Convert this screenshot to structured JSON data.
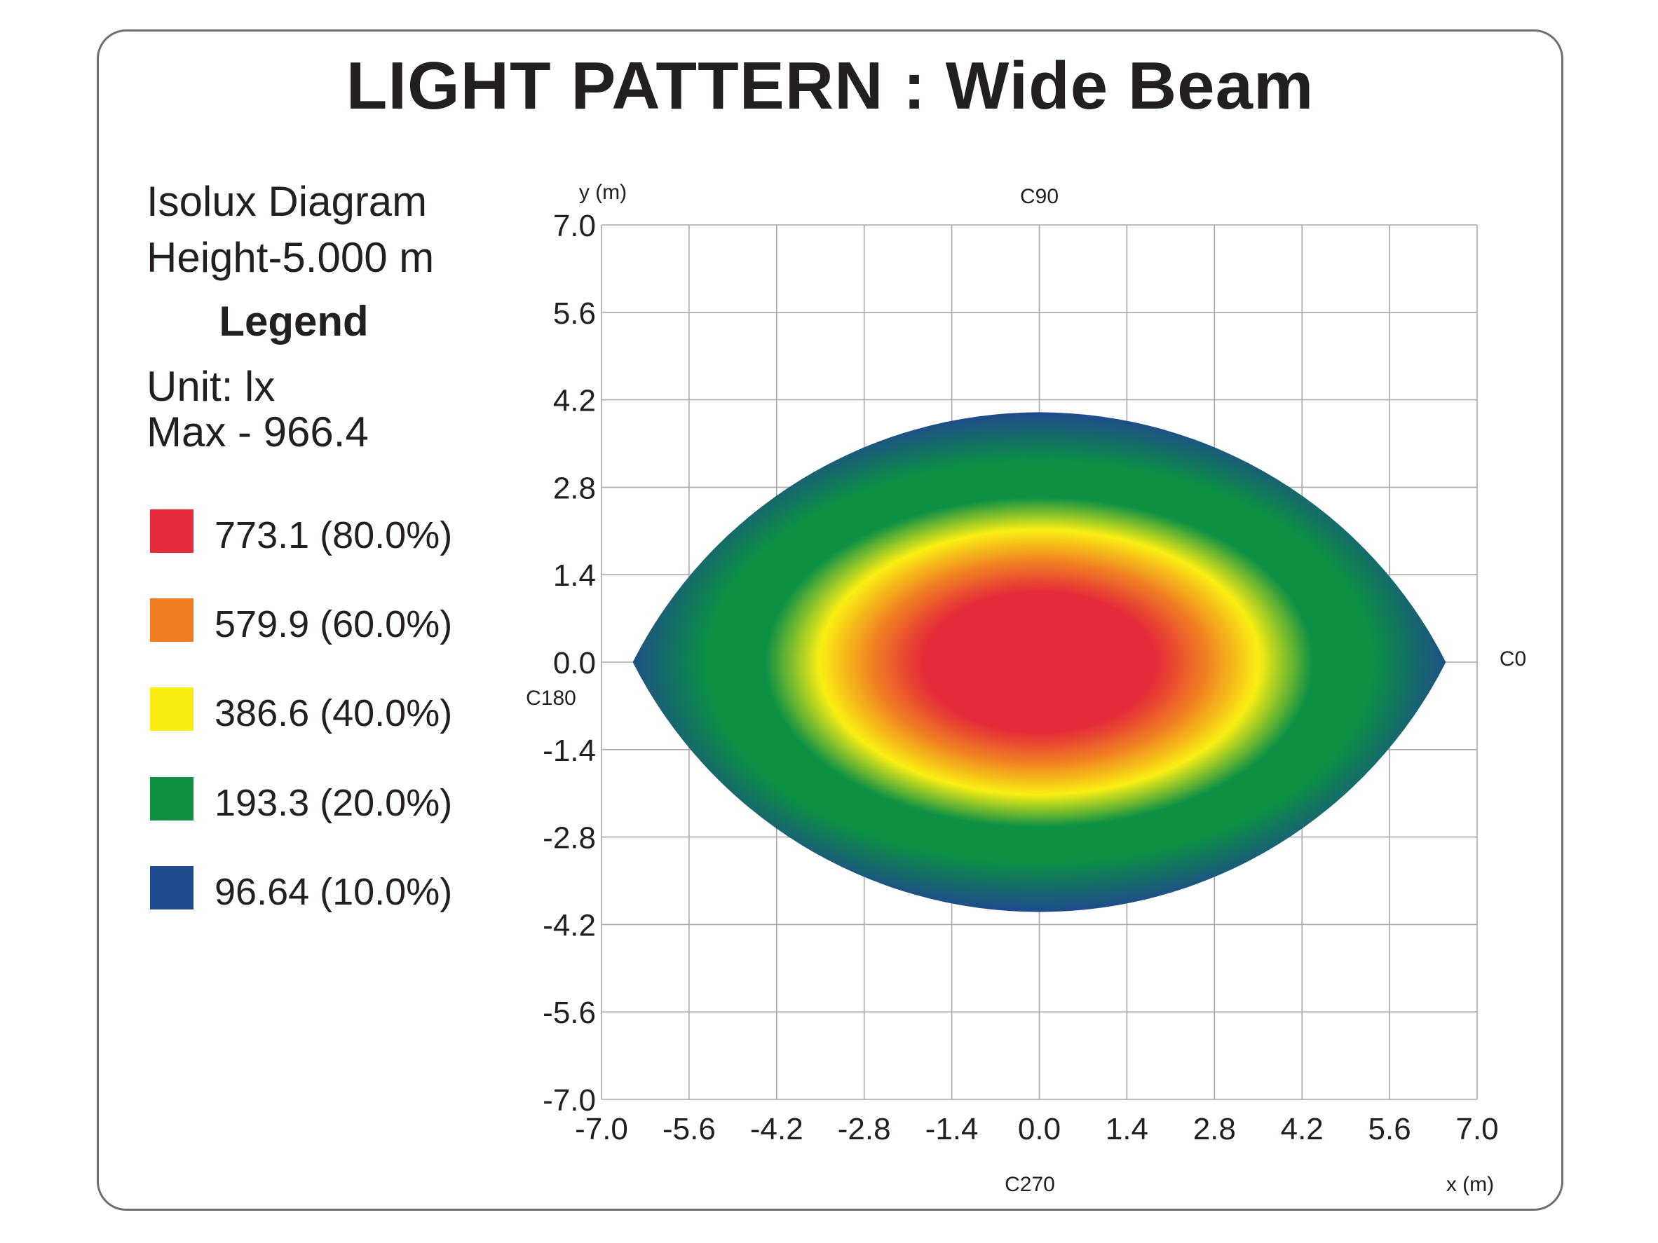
{
  "title": "LIGHT PATTERN : Wide Beam",
  "info": {
    "diagram": "Isolux Diagram",
    "height": "Height-5.000 m",
    "unit": "Unit: lx",
    "max": "Max - 966.4"
  },
  "legend": {
    "heading": "Legend",
    "items": [
      {
        "label": "773.1 (80.0%)",
        "color": "#e52a3a"
      },
      {
        "label": "579.9 (60.0%)",
        "color": "#f07d22"
      },
      {
        "label": "386.6 (40.0%)",
        "color": "#f9ee12"
      },
      {
        "label": "193.3 (20.0%)",
        "color": "#0c9144"
      },
      {
        "label": "96.64 (10.0%)",
        "color": "#1f4a8c"
      }
    ]
  },
  "chart_data": {
    "type": "heatmap",
    "xlabel": "x (m)",
    "ylabel": "y (m)",
    "xlim": [
      -7.0,
      7.0
    ],
    "ylim": [
      -7.0,
      7.0
    ],
    "x_ticks": [
      "-7.0",
      "-5.6",
      "-4.2",
      "-2.8",
      "-1.4",
      "0.0",
      "1.4",
      "2.8",
      "4.2",
      "5.6",
      "7.0"
    ],
    "y_ticks": [
      "7.0",
      "5.6",
      "4.2",
      "2.8",
      "1.4",
      "0.0",
      "-1.4",
      "-2.8",
      "-4.2",
      "-5.6",
      "-7.0"
    ],
    "grid": true,
    "direction_labels": {
      "c90": "C90",
      "c0": "C0",
      "c180": "C180",
      "c270": "C270"
    },
    "colors": {
      "level_80": "#e52a3a",
      "level_60": "#f07d22",
      "level_40": "#f9ee12",
      "level_20": "#0c9144",
      "level_10": "#1f4a8c"
    },
    "pattern_extent": {
      "x": [
        -6.5,
        6.5
      ],
      "y": [
        -4.0,
        4.0
      ]
    }
  }
}
